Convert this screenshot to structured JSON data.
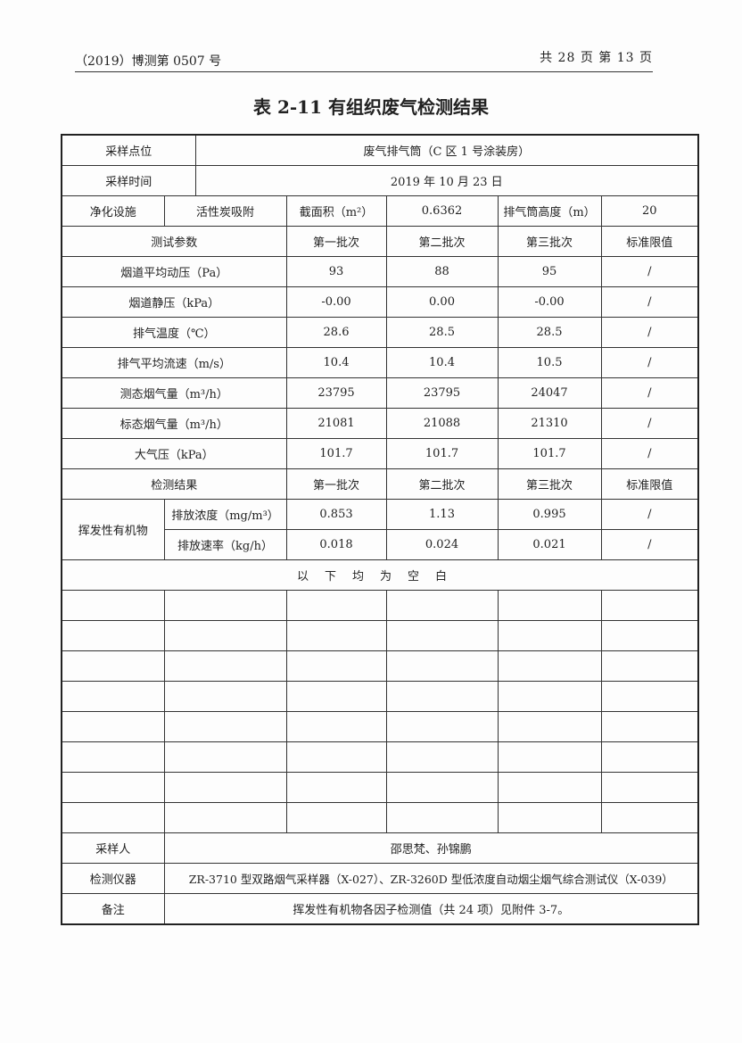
{
  "header": {
    "report_no": "（2019）博测第 0507 号",
    "page_info": "共 28 页  第 13 页"
  },
  "title": "表 2-11  有组织废气检测结果",
  "table": {
    "sampling_point_label": "采样点位",
    "sampling_point": "废气排气筒（C 区 1 号涂装房）",
    "sampling_time_label": "采样时间",
    "sampling_time": "2019 年 10 月 23 日",
    "purification_label": "净化设施",
    "purification": "活性炭吸附",
    "area_label": "截面积（m²）",
    "area": "0.6362",
    "stack_height_label": "排气筒高度（m）",
    "stack_height": "20",
    "param_header": [
      "测试参数",
      "第一批次",
      "第二批次",
      "第三批次",
      "标准限值"
    ],
    "params": [
      {
        "name": "烟道平均动压（Pa）",
        "values": [
          "93",
          "88",
          "95",
          "/"
        ]
      },
      {
        "name": "烟道静压（kPa）",
        "values": [
          "-0.00",
          "0.00",
          "-0.00",
          "/"
        ]
      },
      {
        "name": "排气温度（℃）",
        "values": [
          "28.6",
          "28.5",
          "28.5",
          "/"
        ]
      },
      {
        "name": "排气平均流速（m/s）",
        "values": [
          "10.4",
          "10.4",
          "10.5",
          "/"
        ]
      },
      {
        "name": "测态烟气量（m³/h）",
        "values": [
          "23795",
          "23795",
          "24047",
          "/"
        ]
      },
      {
        "name": "标态烟气量（m³/h）",
        "values": [
          "21081",
          "21088",
          "21310",
          "/"
        ]
      },
      {
        "name": "大气压（kPa）",
        "values": [
          "101.7",
          "101.7",
          "101.7",
          "/"
        ]
      }
    ],
    "result_header": [
      "检测结果",
      "第一批次",
      "第二批次",
      "第三批次",
      "标准限值"
    ],
    "pollutant": "挥发性有机物",
    "results": [
      {
        "name": "排放浓度（mg/m³）",
        "values": [
          "0.853",
          "1.13",
          "0.995",
          "/"
        ]
      },
      {
        "name": "排放速率（kg/h）",
        "values": [
          "0.018",
          "0.024",
          "0.021",
          "/"
        ]
      }
    ],
    "blank_note": "以下均为空白",
    "sampler_label": "采样人",
    "sampler": "邵思梵、孙锦鹏",
    "instrument_label": "检测仪器",
    "instrument": "ZR-3710 型双路烟气采样器（X-027）、ZR-3260D 型低浓度自动烟尘烟气综合测试仪（X-039）",
    "remark_label": "备注",
    "remark": "挥发性有机物各因子检测值（共 24 项）见附件 3-7。"
  }
}
